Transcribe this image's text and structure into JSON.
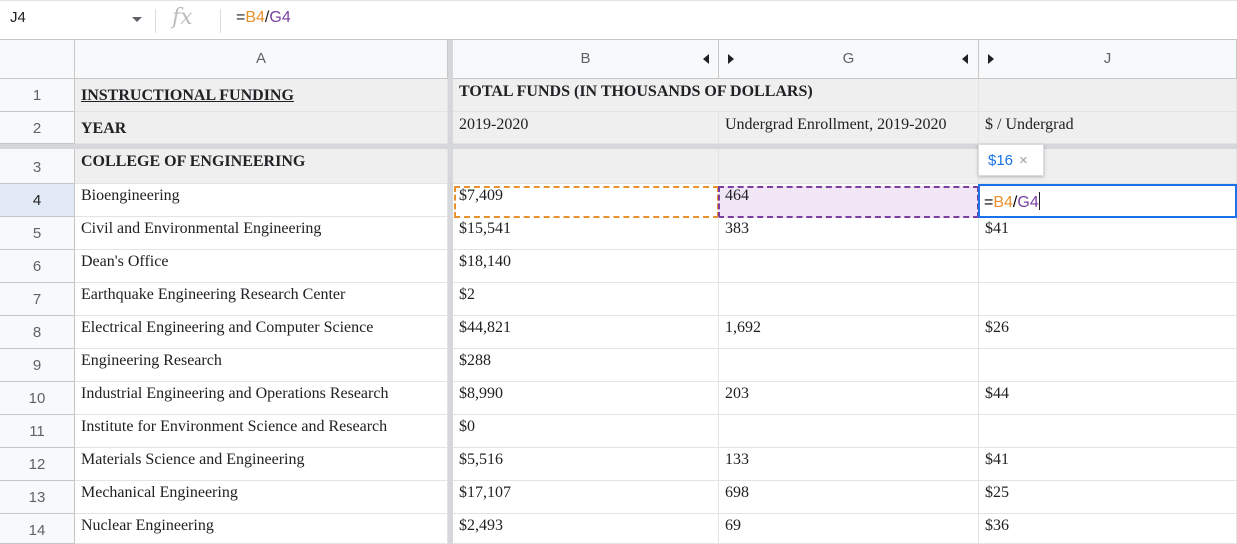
{
  "formula_bar": {
    "name_box": "J4",
    "fx_label": "fx",
    "formula_prefix": "=",
    "formula_ref_b": "B4",
    "formula_slash": "/",
    "formula_ref_g": "G4"
  },
  "columns": {
    "A": "A",
    "B": "B",
    "G": "G",
    "J": "J"
  },
  "rows": {
    "r1": {
      "num": "1",
      "A": "INSTRUCTIONAL FUNDING",
      "B": "TOTAL FUNDS (IN THOUSANDS OF DOLLARS)",
      "G": "",
      "J": ""
    },
    "r2": {
      "num": "2",
      "A": "YEAR",
      "B": "2019-2020",
      "G": "Undergrad Enrollment, 2019-2020",
      "J": "$ / Undergrad"
    },
    "r3": {
      "num": "3",
      "A": "COLLEGE OF ENGINEERING",
      "B": "",
      "G": "",
      "J": ""
    },
    "r4": {
      "num": "4",
      "A": "Bioengineering",
      "B": "$7,409",
      "G": "464",
      "J": ""
    },
    "r5": {
      "num": "5",
      "A": "Civil and Environmental Engineering",
      "B": "$15,541",
      "G": "383",
      "J": "$41"
    },
    "r6": {
      "num": "6",
      "A": "Dean's Office",
      "B": "$18,140",
      "G": "",
      "J": ""
    },
    "r7": {
      "num": "7",
      "A": "Earthquake Engineering Research Center",
      "B": "$2",
      "G": "",
      "J": ""
    },
    "r8": {
      "num": "8",
      "A": "Electrical Engineering and Computer Science",
      "B": "$44,821",
      "G": "1,692",
      "J": "$26"
    },
    "r9": {
      "num": "9",
      "A": "Engineering Research",
      "B": "$288",
      "G": "",
      "J": ""
    },
    "r10": {
      "num": "10",
      "A": "Industrial Engineering and Operations Research",
      "B": "$8,990",
      "G": "203",
      "J": "$44"
    },
    "r11": {
      "num": "11",
      "A": "Institute for Environment Science and Research",
      "B": "$0",
      "G": "",
      "J": ""
    },
    "r12": {
      "num": "12",
      "A": "Materials Science and Engineering",
      "B": "$5,516",
      "G": "133",
      "J": "$41"
    },
    "r13": {
      "num": "13",
      "A": "Mechanical Engineering",
      "B": "$17,107",
      "G": "698",
      "J": "$25"
    },
    "r14": {
      "num": "14",
      "A": "Nuclear Engineering",
      "B": "$2,493",
      "G": "69",
      "J": "$36"
    }
  },
  "active_cell": {
    "prefix": "=",
    "ref_b": "B4",
    "slash": "/",
    "ref_g": "G4"
  },
  "tooltip": {
    "value": "$16",
    "close": "×"
  },
  "colors": {
    "ref_b": "#e8912d",
    "ref_g": "#7b3fa0",
    "selection": "#1a73e8"
  }
}
